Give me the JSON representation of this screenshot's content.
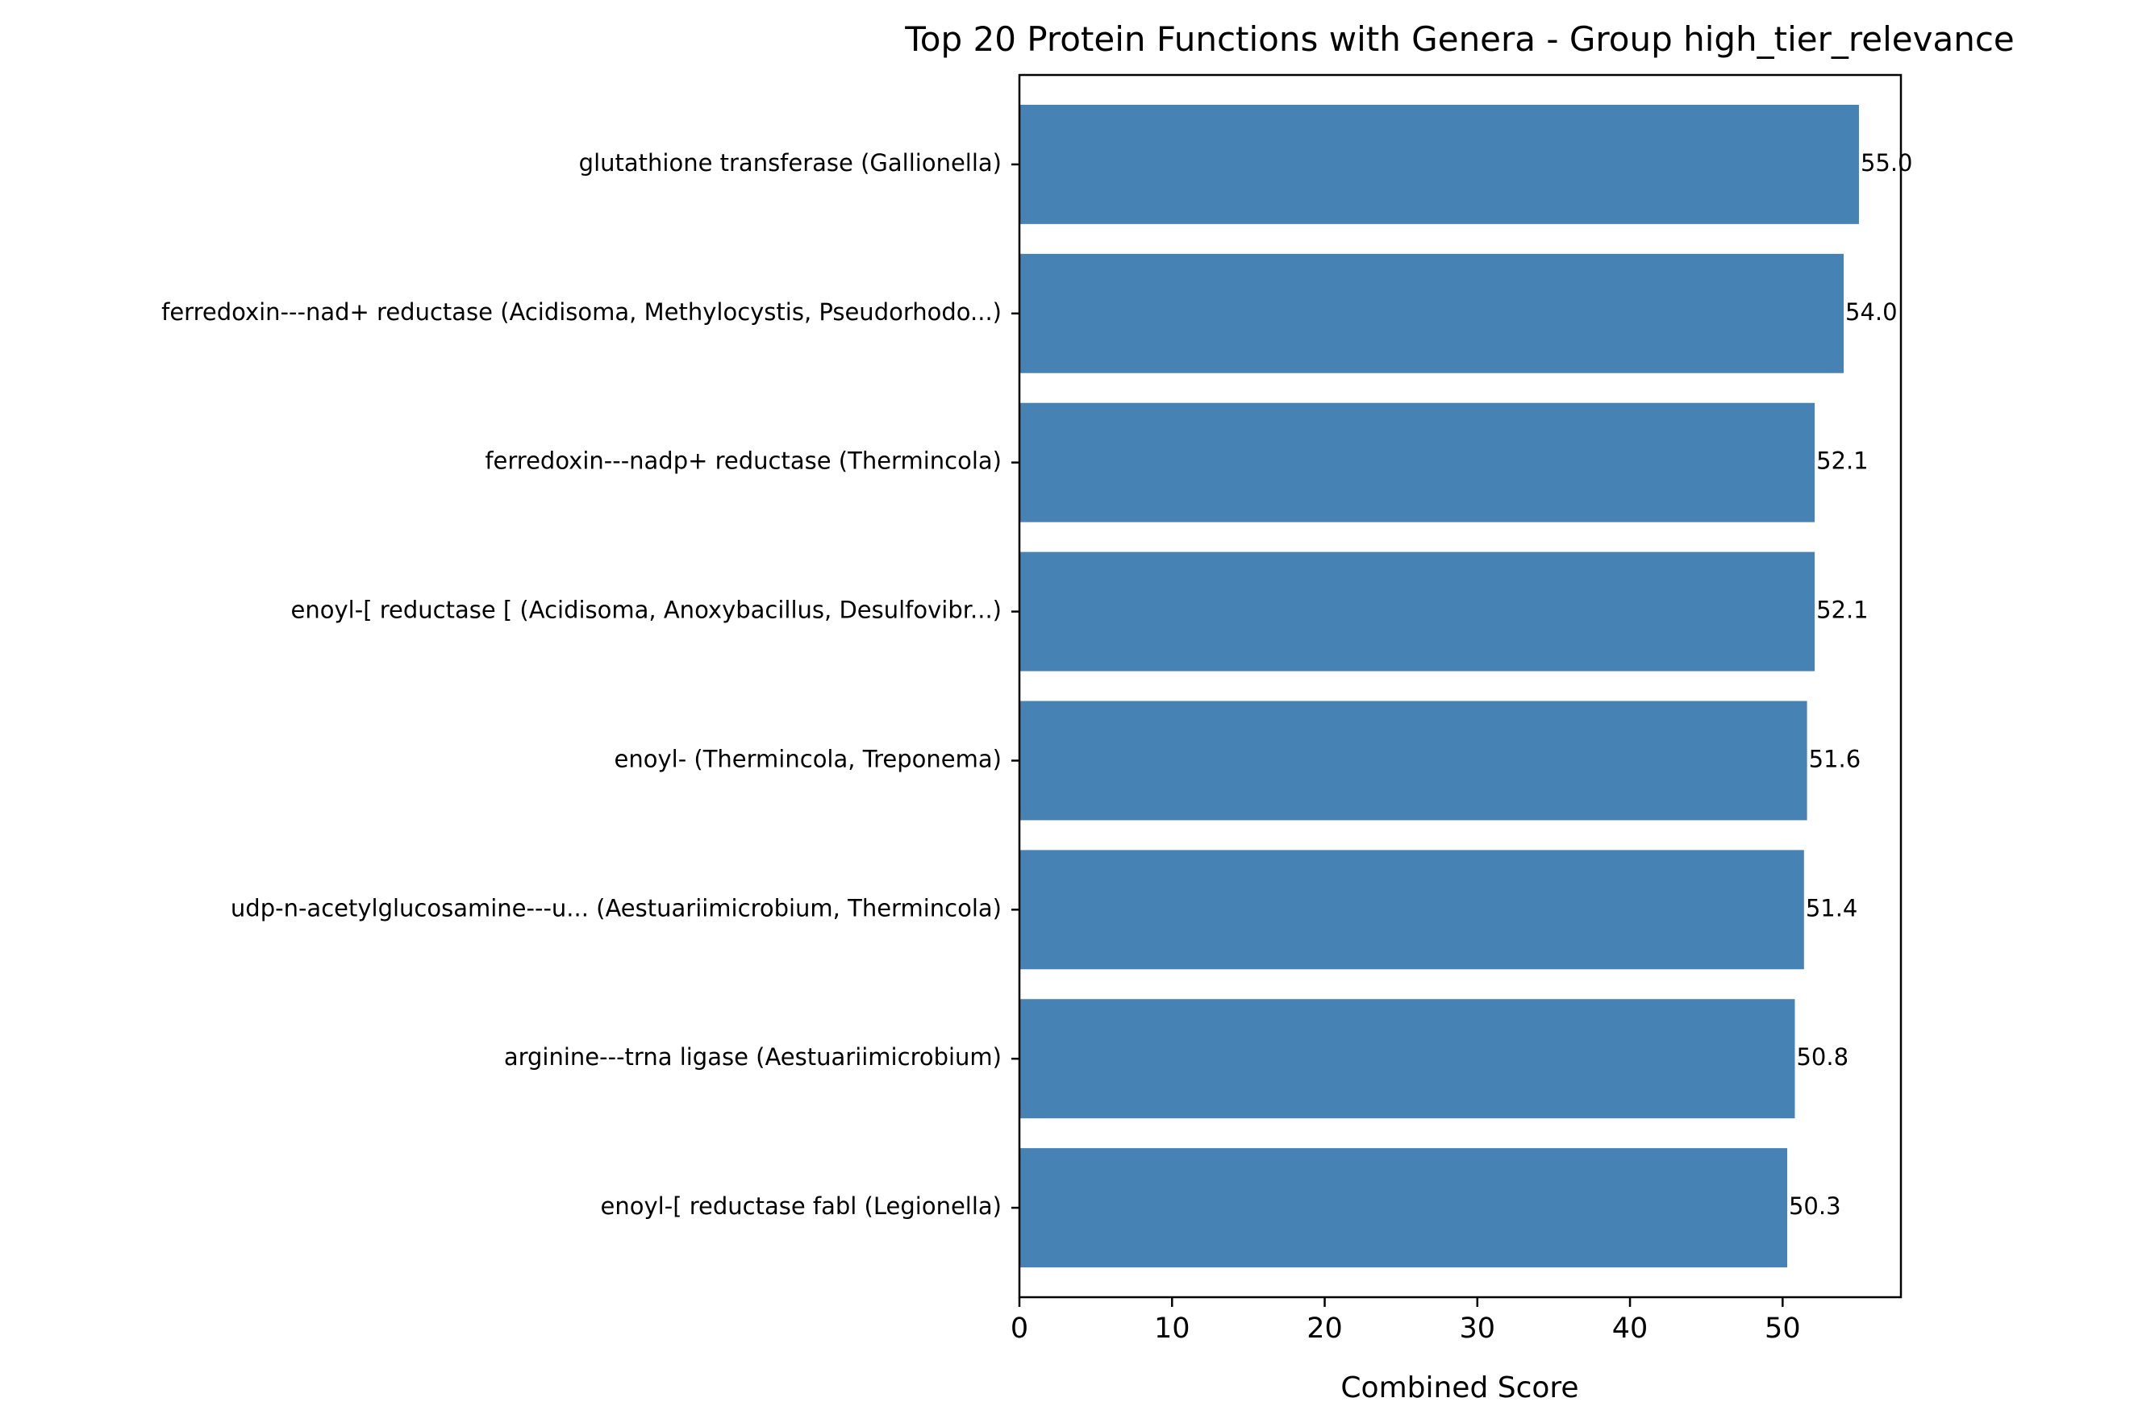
{
  "colors": {
    "bar": "#4682b4",
    "axis": "#000000",
    "background": "#ffffff"
  },
  "chart_data": {
    "type": "bar",
    "orientation": "horizontal",
    "title": "Top 20 Protein Functions with Genera - Group high_tier_relevance",
    "xlabel": "Combined Score",
    "ylabel": "",
    "xlim": [
      0,
      57.75
    ],
    "xticks": [
      0,
      10,
      20,
      30,
      40,
      50
    ],
    "grid": false,
    "categories": [
      "glutathione transferase (Gallionella)",
      "ferredoxin---nad+ reductase (Acidisoma, Methylocystis, Pseudorhodo...)",
      "ferredoxin---nadp+ reductase (Thermincola)",
      "enoyl-[ reductase [ (Acidisoma, Anoxybacillus, Desulfovibr...)",
      "enoyl- (Thermincola, Treponema)",
      "udp-n-acetylglucosamine---u... (Aestuariimicrobium, Thermincola)",
      "arginine---trna ligase (Aestuariimicrobium)",
      "enoyl-[ reductase fabl (Legionella)"
    ],
    "values": [
      55.0,
      54.0,
      52.1,
      52.1,
      51.6,
      51.4,
      50.8,
      50.3
    ],
    "value_labels": [
      "55.0",
      "54.0",
      "52.1",
      "52.1",
      "51.6",
      "51.4",
      "50.8",
      "50.3"
    ]
  }
}
